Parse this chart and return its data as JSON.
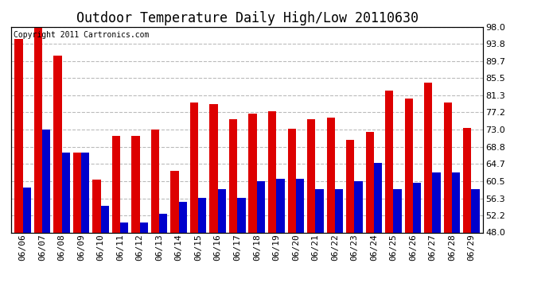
{
  "title": "Outdoor Temperature Daily High/Low 20110630",
  "copyright": "Copyright 2011 Cartronics.com",
  "dates": [
    "06/06",
    "06/07",
    "06/08",
    "06/09",
    "06/10",
    "06/11",
    "06/12",
    "06/13",
    "06/14",
    "06/15",
    "06/16",
    "06/17",
    "06/18",
    "06/19",
    "06/20",
    "06/21",
    "06/22",
    "06/23",
    "06/24",
    "06/25",
    "06/26",
    "06/27",
    "06/28",
    "06/29"
  ],
  "highs": [
    95.0,
    98.0,
    91.0,
    67.5,
    60.8,
    71.5,
    71.5,
    73.0,
    63.0,
    79.5,
    79.2,
    75.5,
    76.8,
    77.5,
    73.2,
    75.5,
    76.0,
    70.5,
    72.5,
    82.5,
    80.5,
    84.5,
    79.5,
    73.5
  ],
  "lows": [
    59.0,
    73.0,
    67.5,
    67.5,
    54.5,
    50.5,
    50.5,
    52.5,
    55.5,
    56.5,
    58.5,
    56.5,
    60.5,
    61.0,
    61.0,
    58.5,
    58.5,
    60.5,
    65.0,
    58.5,
    60.0,
    62.5,
    62.5,
    58.5
  ],
  "high_color": "#dd0000",
  "low_color": "#0000cc",
  "bg_color": "#ffffff",
  "plot_bg_color": "#ffffff",
  "grid_color": "#bbbbbb",
  "ylim_min": 48.0,
  "ylim_max": 98.0,
  "yticks": [
    48.0,
    52.2,
    56.3,
    60.5,
    64.7,
    68.8,
    73.0,
    77.2,
    81.3,
    85.5,
    89.7,
    93.8,
    98.0
  ],
  "bar_width": 0.42,
  "title_fontsize": 12,
  "tick_fontsize": 8,
  "copyright_fontsize": 7
}
